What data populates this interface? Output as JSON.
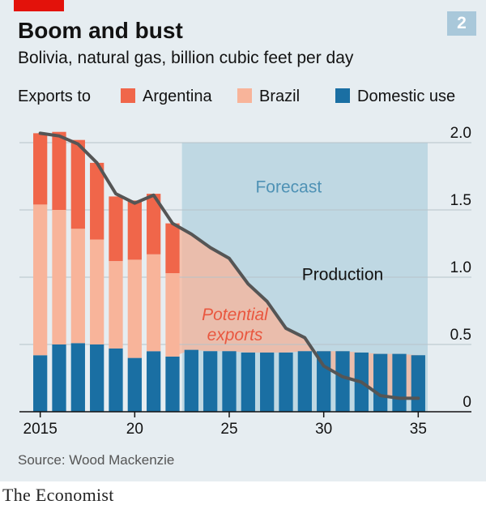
{
  "header": {
    "title": "Boom and bust",
    "subtitle": "Bolivia, natural gas, billion cubic feet per day",
    "figure_number": "2"
  },
  "footer": {
    "source": "Source: Wood Mackenzie",
    "brand": "The Economist"
  },
  "colors": {
    "panel": "#e6edf1",
    "red_tag": "#e3120b",
    "argentina": "#f0664a",
    "brazil": "#f8b49a",
    "domestic": "#1a6fa3",
    "forecast_band": "#b7d3e1",
    "production_line": "#555555",
    "forecast_text": "#4f92b5",
    "potential_text": "#e9573f",
    "figure_badge": "#a9c8da"
  },
  "legend": {
    "prefix": "Exports to",
    "items": [
      {
        "label": "Argentina",
        "color_key": "argentina"
      },
      {
        "label": "Brazil",
        "color_key": "brazil"
      },
      {
        "label": "Domestic use",
        "color_key": "domestic"
      }
    ]
  },
  "chart_data": {
    "type": "bar",
    "stacked": true,
    "x": [
      2015,
      2016,
      2017,
      2018,
      2019,
      2020,
      2021,
      2022,
      2023,
      2024,
      2025,
      2026,
      2027,
      2028,
      2029,
      2030,
      2031,
      2032,
      2033,
      2034,
      2035
    ],
    "x_tick_labels": [
      {
        "value": 2015,
        "label": "2015"
      },
      {
        "value": 2020,
        "label": "20"
      },
      {
        "value": 2025,
        "label": "25"
      },
      {
        "value": 2030,
        "label": "30"
      },
      {
        "value": 2035,
        "label": "35"
      }
    ],
    "series": [
      {
        "name": "Domestic use",
        "color_key": "domestic",
        "values": [
          0.42,
          0.5,
          0.51,
          0.5,
          0.47,
          0.4,
          0.45,
          0.41,
          0.46,
          0.45,
          0.45,
          0.44,
          0.44,
          0.44,
          0.45,
          0.45,
          0.45,
          0.44,
          0.43,
          0.43,
          0.42
        ]
      },
      {
        "name": "Brazil",
        "color_key": "brazil",
        "values": [
          1.12,
          1.0,
          0.85,
          0.78,
          0.65,
          0.73,
          0.72,
          0.62,
          null,
          null,
          null,
          null,
          null,
          null,
          null,
          null,
          null,
          null,
          null,
          null,
          null
        ]
      },
      {
        "name": "Argentina",
        "color_key": "argentina",
        "values": [
          0.53,
          0.58,
          0.66,
          0.57,
          0.48,
          0.44,
          0.45,
          0.37,
          null,
          null,
          null,
          null,
          null,
          null,
          null,
          null,
          null,
          null,
          null,
          null,
          null
        ]
      }
    ],
    "production_line": {
      "label": "Production",
      "x": [
        2015,
        2016,
        2017,
        2018,
        2019,
        2020,
        2021,
        2022,
        2023,
        2024,
        2025,
        2026,
        2027,
        2028,
        2029,
        2030,
        2031,
        2032,
        2033,
        2034,
        2035
      ],
      "values": [
        2.07,
        2.05,
        1.99,
        1.85,
        1.62,
        1.55,
        1.61,
        1.4,
        1.32,
        1.22,
        1.14,
        0.95,
        0.82,
        0.62,
        0.55,
        0.34,
        0.26,
        0.22,
        0.12,
        0.1,
        0.1
      ]
    },
    "forecast_region": {
      "from": 2022.5,
      "to": 2035.5,
      "label": "Forecast"
    },
    "potential_exports_label": [
      "Potential",
      "exports"
    ],
    "y_ticks": [
      {
        "value": 0,
        "label": "0"
      },
      {
        "value": 0.5,
        "label": "0.5"
      },
      {
        "value": 1.0,
        "label": "1.0"
      },
      {
        "value": 1.5,
        "label": "1.5"
      },
      {
        "value": 2.0,
        "label": "2.0"
      }
    ],
    "ylim": [
      0,
      2.0
    ],
    "xlim": [
      2014.5,
      2035.5
    ],
    "grid": true,
    "y_axis_side": "right",
    "legend_position": "top"
  }
}
